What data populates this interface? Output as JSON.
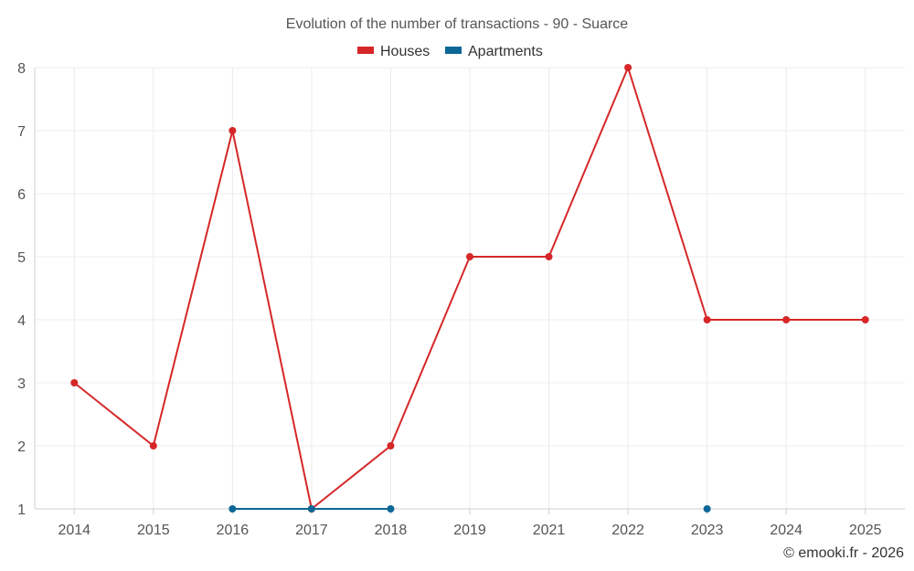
{
  "chart_data": {
    "type": "line",
    "title": "Evolution of the number of transactions - 90 - Suarce",
    "categories": [
      "2014",
      "2015",
      "2016",
      "2017",
      "2018",
      "2019",
      "2021",
      "2022",
      "2023",
      "2024",
      "2025"
    ],
    "series": [
      {
        "name": "Houses",
        "color": "#d62728",
        "values": [
          3,
          2,
          7,
          1,
          2,
          5,
          5,
          8,
          4,
          4,
          4
        ]
      },
      {
        "name": "Apartments",
        "color": "#0d6796",
        "values": [
          null,
          null,
          1,
          1,
          1,
          null,
          null,
          null,
          1,
          null,
          null
        ]
      }
    ],
    "yticks": [
      "1",
      "2",
      "3",
      "4",
      "5",
      "6",
      "7",
      "8"
    ],
    "ylim": [
      1,
      8
    ],
    "grid": true,
    "legend": "top-center"
  },
  "credit": "© emooki.fr - 2026"
}
